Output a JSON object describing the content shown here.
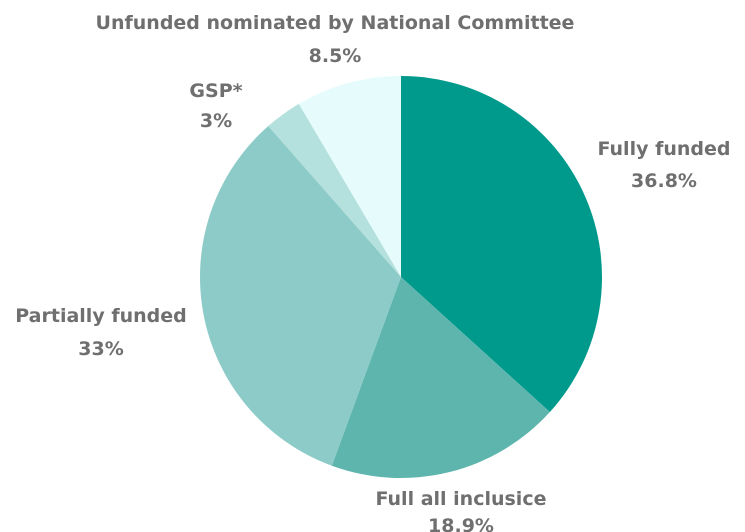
{
  "chart_data": {
    "type": "pie",
    "title": "",
    "start": "12 o'clock",
    "direction": "clockwise",
    "slices": [
      {
        "label": "Fully funded",
        "value": 36.8,
        "value_text": "36.8%",
        "color": "#009a8c"
      },
      {
        "label": "Full all inclusice",
        "value": 18.9,
        "value_text": "18.9%",
        "color": "#5db5ad"
      },
      {
        "label": "Partially funded",
        "value": 33,
        "value_text": "33%",
        "color": "#8ccbc7"
      },
      {
        "label": "GSP*",
        "value": 3,
        "value_text": "3%",
        "color": "#b4e0dd"
      },
      {
        "label": "Unfunded nominated by National Committee",
        "value": 8.5,
        "value_text": "8.5%",
        "color": "#e6fbfb"
      }
    ]
  }
}
